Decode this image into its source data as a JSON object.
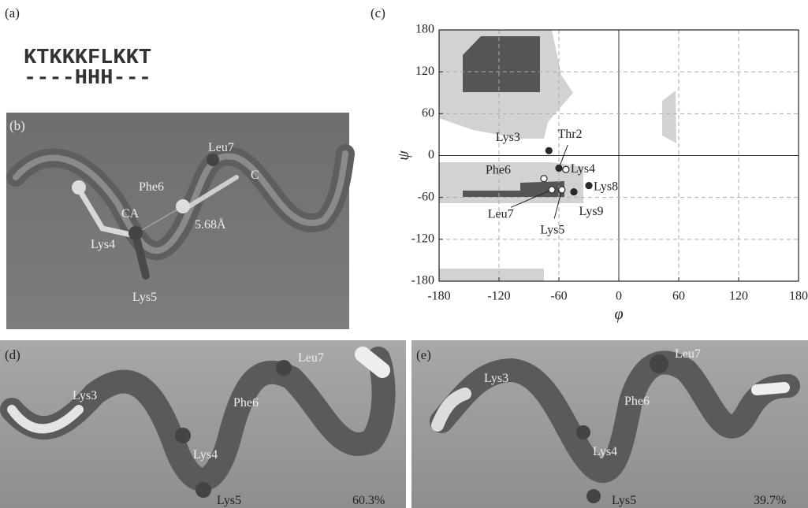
{
  "panel_labels": [
    "(a)",
    "(b)",
    "(c)",
    "(d)",
    "(e)"
  ],
  "sequence": {
    "residues": "KTKKKFLKKT",
    "structure": "----HHH---"
  },
  "panel_b": {
    "labels": [
      "Leu7",
      "Phe6",
      "C",
      "CA",
      "5.68Å",
      "Lys4",
      "Lys5"
    ]
  },
  "panel_d": {
    "labels": [
      "Leu7",
      "Lys3",
      "Phe6",
      "Lys4",
      "Lys5"
    ],
    "percent": "60.3%"
  },
  "panel_e": {
    "labels": [
      "Leu7",
      "Lys3",
      "Phe6",
      "Lys4",
      "Lys5"
    ],
    "percent": "39.7%"
  },
  "chart_data": {
    "type": "scatter",
    "x_label": "φ",
    "y_label": "ψ",
    "labels": [
      "Lys3",
      "Thr2",
      "Lys4",
      "Phe6",
      "Lys8",
      "Leu7",
      "Lys5",
      "Lys9"
    ],
    "x": [
      -70,
      -60,
      -53,
      -75,
      -30,
      -67,
      -57,
      -45
    ],
    "values": [
      7,
      -18,
      -20,
      -33,
      -43,
      -49,
      -49,
      -52
    ],
    "filled": [
      true,
      true,
      false,
      false,
      true,
      false,
      false,
      true
    ],
    "color": "#2a2a2a",
    "xlim": [
      -180,
      180
    ],
    "ylim": [
      -180,
      180
    ],
    "xticks": [
      -180,
      -120,
      -60,
      0,
      60,
      120,
      180
    ],
    "yticks": [
      -180,
      -120,
      -60,
      0,
      60,
      120,
      180
    ],
    "grid": true
  }
}
